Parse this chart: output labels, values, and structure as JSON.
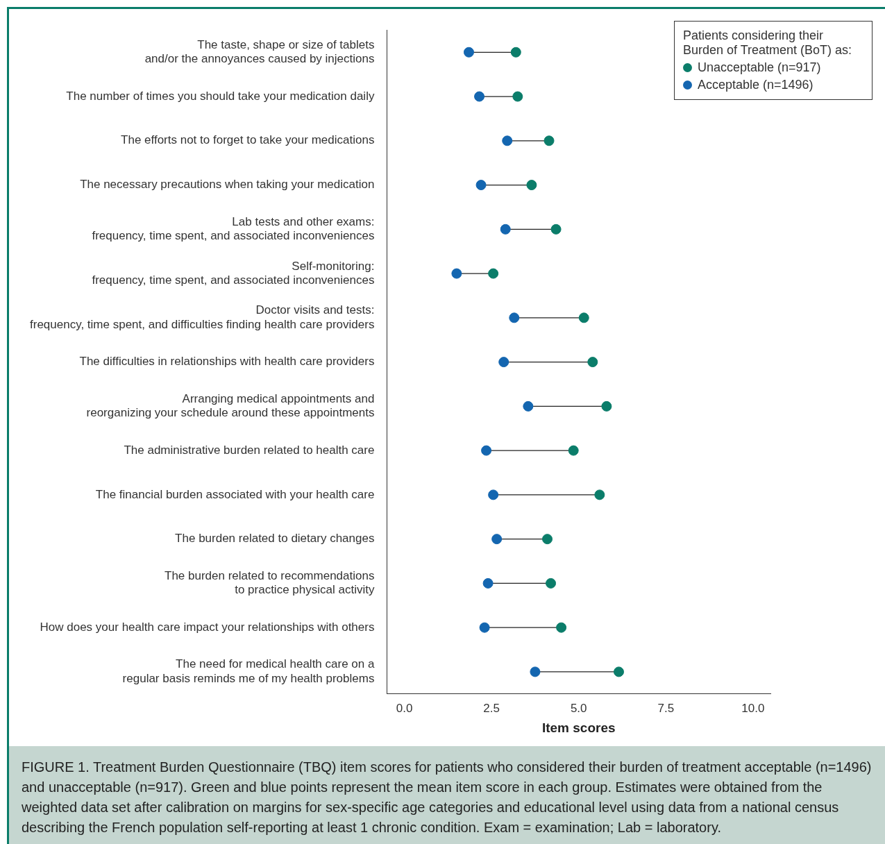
{
  "chart_data": {
    "type": "scatter",
    "orientation": "horizontal",
    "categories": [
      "The taste, shape or size of tablets\nand/or the annoyances caused by injections",
      "The number of times you should take your medication daily",
      "The efforts not to forget to take your medications",
      "The necessary precautions when taking your medication",
      "Lab tests and other exams:\nfrequency, time spent, and associated inconveniences",
      "Self-monitoring:\nfrequency, time spent, and associated inconveniences",
      "Doctor visits and tests:\nfrequency, time spent, and difficulties finding health care providers",
      "The difficulties in relationships with health care providers",
      "Arranging medical appointments and\nreorganizing your schedule around these appointments",
      "The administrative burden related to health care",
      "The financial burden associated with your health care",
      "The burden related to dietary changes",
      "The burden related to recommendations\nto practice physical activity",
      "How does your health care impact your relationships with others",
      "The need for medical health care on a\nregular basis reminds me of my health problems"
    ],
    "series": [
      {
        "name": "Unacceptable (n=917)",
        "color": "#0b7d6a",
        "values": [
          3.2,
          3.25,
          4.15,
          3.65,
          4.35,
          2.55,
          5.15,
          5.4,
          5.8,
          4.85,
          5.6,
          4.1,
          4.2,
          4.5,
          6.15
        ]
      },
      {
        "name": "Acceptable (n=1496)",
        "color": "#1466b0",
        "values": [
          1.85,
          2.15,
          2.95,
          2.2,
          2.9,
          1.5,
          3.15,
          2.85,
          3.55,
          2.35,
          2.55,
          2.65,
          2.4,
          2.3,
          3.75
        ]
      }
    ],
    "xlim": [
      -0.5,
      10.5
    ],
    "xticks": [
      {
        "value": 0,
        "label": "0.0"
      },
      {
        "value": 2.5,
        "label": "2.5"
      },
      {
        "value": 5,
        "label": "5.0"
      },
      {
        "value": 7.5,
        "label": "7.5"
      },
      {
        "value": 10,
        "label": "10.0"
      }
    ],
    "xlabel": "Item scores",
    "legend": "top right",
    "legend_title": "Patients considering their Burden of Treatment (BoT) as:",
    "marker": "circle",
    "grid": false,
    "annotations": [
      "FIGURE 1. Treatment Burden Questionnaire (TBQ) item scores for patients who considered their burden of treatment acceptable (n=1496) and unacceptable (n=917). Green and blue points represent the mean item score in each group. Estimates were obtained from the weighted data set after calibration on margins for sex-specific age categories and educational level using data from a national census describing the French population self-reporting at least 1 chronic condition. Exam = examination; Lab = laboratory."
    ]
  }
}
